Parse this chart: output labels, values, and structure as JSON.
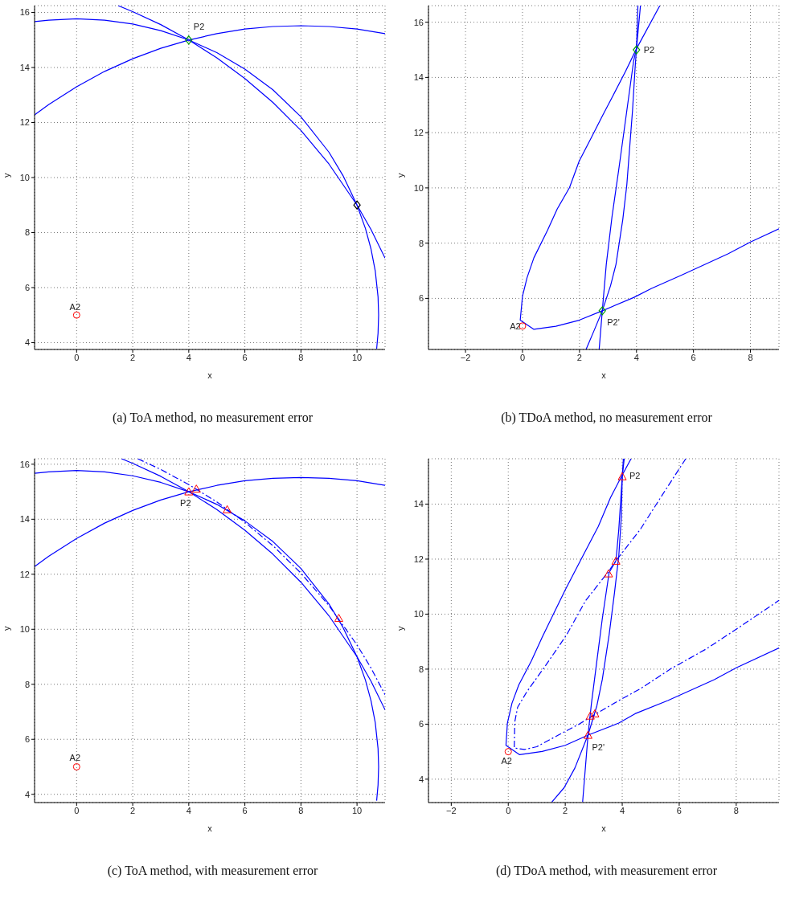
{
  "chart_data": [
    {
      "type": "line",
      "title": "(a) ToA method, no measurement error",
      "xlabel": "x",
      "ylabel": "y",
      "xlim": [
        -1.5,
        11
      ],
      "ylim": [
        3.75,
        16.25
      ],
      "xticks": [
        0,
        2,
        4,
        6,
        8,
        10
      ],
      "yticks": [
        4,
        6,
        8,
        10,
        12,
        14,
        16
      ],
      "grid": true,
      "series": [
        {
          "type": "line",
          "color": "#0000ff",
          "line_style": "solid",
          "x": [
            -1.5,
            -1,
            0,
            1,
            2,
            3,
            4,
            5,
            6,
            7,
            8,
            9,
            9.5,
            10,
            10.3,
            10.5,
            10.65,
            10.75,
            10.77,
            10.75,
            10.7
          ],
          "values": [
            15.67,
            15.72,
            15.77,
            15.72,
            15.58,
            15.34,
            15,
            14.54,
            13.94,
            13.19,
            12.21,
            10.92,
            10.07,
            9,
            8.15,
            7.4,
            6.61,
            5.66,
            5,
            4.34,
            3.77
          ]
        },
        {
          "type": "line",
          "color": "#0000ff",
          "line_style": "solid",
          "x": [
            -1.5,
            -1,
            0,
            1,
            2,
            3,
            4,
            5,
            6,
            7,
            8,
            9,
            10,
            11
          ],
          "values": [
            12.28,
            12.65,
            13.3,
            13.86,
            14.32,
            14.7,
            15,
            15.23,
            15.4,
            15.49,
            15.52,
            15.49,
            15.4,
            15.23
          ]
        },
        {
          "type": "line",
          "color": "#0000ff",
          "line_style": "solid",
          "x": [
            1.48,
            2,
            3,
            4,
            5,
            6,
            7,
            8,
            9,
            10,
            10.5,
            11
          ],
          "values": [
            16.25,
            16.03,
            15.56,
            15,
            14.35,
            13.6,
            12.73,
            11.71,
            10.49,
            9,
            8.11,
            7.07
          ]
        },
        {
          "type": "scatter",
          "marker": "circle",
          "color": "#ff0000",
          "x": [
            0
          ],
          "values": [
            5
          ]
        },
        {
          "type": "scatter",
          "marker": "diamond",
          "color": "#00a000",
          "x": [
            4
          ],
          "values": [
            15
          ]
        },
        {
          "type": "scatter",
          "marker": "diamond",
          "color": "#000000",
          "x": [
            10
          ],
          "values": [
            9
          ]
        }
      ],
      "annotations": [
        {
          "text": "P2",
          "x": 4,
          "y": 15
        },
        {
          "text": "A2",
          "x": 0,
          "y": 5
        }
      ]
    },
    {
      "type": "line",
      "title": "(b) TDoA method, no measurement error",
      "xlabel": "x",
      "ylabel": "y",
      "xlim": [
        -3.3,
        9
      ],
      "ylim": [
        4.15,
        16.6
      ],
      "xticks": [
        -2,
        0,
        2,
        4,
        6,
        8
      ],
      "yticks": [
        6,
        8,
        10,
        12,
        14,
        16
      ],
      "grid": true,
      "series": [
        {
          "type": "line",
          "color": "#0000ff",
          "line_style": "solid",
          "x": [
            4.82,
            4,
            3.62,
            3.14,
            2.8,
            2.42,
            1.99,
            1.65,
            1.22,
            0.88,
            0.4,
            0.16,
            0,
            -0.08,
            0.4,
            1.17,
            1.99,
            2.8,
            3.9,
            4.53,
            5.58,
            7.21,
            8,
            9
          ],
          "values": [
            16.6,
            15.04,
            14.23,
            13.27,
            12.6,
            11.83,
            10.97,
            10.01,
            9.24,
            8.47,
            7.47,
            6.75,
            6.08,
            5.21,
            4.88,
            4.99,
            5.21,
            5.55,
            6.03,
            6.36,
            6.84,
            7.61,
            8.04,
            8.52
          ]
        },
        {
          "type": "line",
          "color": "#0000ff",
          "line_style": "solid",
          "x": [
            2.23,
            2.51,
            2.8,
            3.09,
            3.28,
            3.52,
            3.66,
            3.76,
            3.86,
            3.95,
            4,
            4.05
          ],
          "values": [
            4.15,
            4.83,
            5.55,
            6.46,
            7.23,
            8.86,
            10.1,
            11.45,
            12.79,
            14.32,
            15.04,
            16.6
          ]
        },
        {
          "type": "line",
          "color": "#0000ff",
          "line_style": "solid",
          "x": [
            2.69,
            2.8,
            2.94,
            3.14,
            3.38,
            3.66,
            3.9,
            4,
            4.14
          ],
          "values": [
            4.15,
            5.55,
            7.23,
            8.95,
            10.68,
            12.79,
            14.6,
            15.04,
            16.6
          ]
        },
        {
          "type": "scatter",
          "marker": "circle",
          "color": "#ff0000",
          "x": [
            0
          ],
          "values": [
            5
          ]
        },
        {
          "type": "scatter",
          "marker": "diamond",
          "color": "#00a000",
          "x": [
            4,
            2.8
          ],
          "values": [
            15,
            5.55
          ]
        }
      ],
      "annotations": [
        {
          "text": "P2",
          "x": 4,
          "y": 15
        },
        {
          "text": "P2'",
          "x": 2.8,
          "y": 5.55
        },
        {
          "text": "A2",
          "x": 0,
          "y": 5
        }
      ]
    },
    {
      "type": "line",
      "title": "(c) ToA method, with measurement error",
      "xlabel": "x",
      "ylabel": "y",
      "xlim": [
        -1.5,
        11
      ],
      "ylim": [
        3.7,
        16.2
      ],
      "xticks": [
        0,
        2,
        4,
        6,
        8,
        10
      ],
      "yticks": [
        4,
        6,
        8,
        10,
        12,
        14,
        16
      ],
      "grid": true,
      "series": [
        {
          "type": "line",
          "color": "#0000ff",
          "line_style": "solid",
          "x": [
            -1.5,
            -1,
            0,
            1,
            2,
            3,
            4,
            5,
            6,
            7,
            8,
            9,
            9.5,
            10,
            10.3,
            10.5,
            10.65,
            10.75,
            10.77,
            10.75,
            10.7
          ],
          "values": [
            15.67,
            15.72,
            15.77,
            15.72,
            15.58,
            15.34,
            15,
            14.54,
            13.94,
            13.19,
            12.21,
            10.92,
            10.07,
            9,
            8.15,
            7.4,
            6.61,
            5.66,
            5,
            4.34,
            3.77
          ]
        },
        {
          "type": "line",
          "color": "#0000ff",
          "line_style": "solid",
          "x": [
            -1.5,
            -1,
            0,
            1,
            2,
            3,
            4,
            5,
            6,
            7,
            8,
            9,
            10,
            11
          ],
          "values": [
            12.28,
            12.65,
            13.3,
            13.86,
            14.32,
            14.7,
            15,
            15.23,
            15.4,
            15.49,
            15.52,
            15.49,
            15.4,
            15.23
          ]
        },
        {
          "type": "line",
          "color": "#0000ff",
          "line_style": "solid",
          "x": [
            1.6,
            2,
            3,
            4,
            5,
            6,
            7,
            8,
            9,
            10,
            10.5,
            11
          ],
          "values": [
            16.2,
            16.03,
            15.56,
            15,
            14.35,
            13.6,
            12.73,
            11.71,
            10.49,
            9,
            8.11,
            7.07
          ]
        },
        {
          "type": "line",
          "color": "#0000ff",
          "line_style": "dashed",
          "x": [
            2.18,
            3,
            4,
            5,
            6,
            7,
            8,
            9,
            10,
            10.5,
            11
          ],
          "values": [
            16.2,
            15.81,
            15.26,
            14.63,
            13.89,
            13.04,
            12.04,
            10.86,
            9.43,
            8.59,
            7.62
          ]
        },
        {
          "type": "scatter",
          "marker": "circle",
          "color": "#ff0000",
          "x": [
            0
          ],
          "values": [
            5
          ]
        },
        {
          "type": "scatter",
          "marker": "triangle",
          "color": "#ff0000",
          "x": [
            4,
            4.27,
            5.37,
            9.35
          ],
          "values": [
            15,
            15.1,
            14.35,
            10.4
          ]
        }
      ],
      "annotations": [
        {
          "text": "P2",
          "x": 4,
          "y": 15
        },
        {
          "text": "A2",
          "x": 0,
          "y": 5
        }
      ]
    },
    {
      "type": "line",
      "title": "(d) TDoA method, with measurement error",
      "xlabel": "x",
      "ylabel": "y",
      "xlim": [
        -2.8,
        9.5
      ],
      "ylim": [
        3.15,
        15.65
      ],
      "xticks": [
        -2,
        0,
        2,
        4,
        6,
        8
      ],
      "yticks": [
        4,
        6,
        8,
        10,
        12,
        14
      ],
      "grid": true,
      "series": [
        {
          "type": "line",
          "color": "#0000ff",
          "line_style": "solid",
          "x": [
            4.31,
            3.97,
            3.59,
            3.16,
            2.53,
            2.0,
            1.57,
            1.19,
            0.81,
            0.37,
            0.13,
            -0.03,
            -0.08,
            0.4,
            1.19,
            2.0,
            2.82,
            3.88,
            4.45,
            5.6,
            7.23,
            8.0,
            9.5
          ],
          "values": [
            15.65,
            15.0,
            14.24,
            13.19,
            11.94,
            10.88,
            9.97,
            9.16,
            8.3,
            7.43,
            6.76,
            6.04,
            5.23,
            4.89,
            5.01,
            5.23,
            5.61,
            6.04,
            6.38,
            6.86,
            7.62,
            8.05,
            8.77
          ]
        },
        {
          "type": "line",
          "color": "#0000ff",
          "line_style": "dashed",
          "x": [
            6.23,
            5.41,
            4.64,
            3.78,
            3.49,
            2.72,
            2.05,
            1.29,
            0.66,
            0.33,
            0.23,
            0.21,
            0.57,
            1.0,
            1.77,
            2.48,
            3.01,
            3.88,
            4.64,
            5.7,
            6.94,
            8.0,
            9.5
          ],
          "values": [
            15.65,
            14.34,
            13.09,
            11.94,
            11.51,
            10.5,
            9.25,
            8.1,
            7.19,
            6.62,
            6.09,
            5.13,
            5.08,
            5.18,
            5.61,
            6.0,
            6.33,
            6.86,
            7.29,
            8.01,
            8.73,
            9.45,
            10.5
          ]
        },
        {
          "type": "line",
          "color": "#0000ff",
          "line_style": "solid",
          "x": [
            1.53,
            1.96,
            2.34,
            2.8,
            3.11,
            3.3,
            3.54,
            3.73,
            3.88,
            3.97,
            4.0,
            4.07
          ],
          "values": [
            3.17,
            3.69,
            4.41,
            5.61,
            6.67,
            7.62,
            9.25,
            10.79,
            12.13,
            13.57,
            15.0,
            15.65
          ]
        },
        {
          "type": "line",
          "color": "#0000ff",
          "line_style": "solid",
          "x": [
            2.61,
            2.8,
            2.92,
            3.11,
            3.3,
            3.54,
            3.78,
            3.88,
            4.0,
            4.04
          ],
          "values": [
            3.17,
            5.61,
            6.76,
            8.3,
            9.83,
            11.51,
            11.94,
            13.09,
            15.0,
            15.65
          ]
        },
        {
          "type": "scatter",
          "marker": "circle",
          "color": "#ff0000",
          "x": [
            0
          ],
          "values": [
            5
          ]
        },
        {
          "type": "scatter",
          "marker": "triangle",
          "color": "#ff0000",
          "x": [
            4,
            3.78,
            3.52,
            2.88,
            3.04,
            2.8
          ],
          "values": [
            15,
            11.93,
            11.47,
            6.3,
            6.38,
            5.6
          ]
        }
      ],
      "annotations": [
        {
          "text": "P2",
          "x": 4,
          "y": 15
        },
        {
          "text": "P2'",
          "x": 2.8,
          "y": 5.6
        },
        {
          "text": "A2",
          "x": 0,
          "y": 5
        }
      ]
    }
  ]
}
